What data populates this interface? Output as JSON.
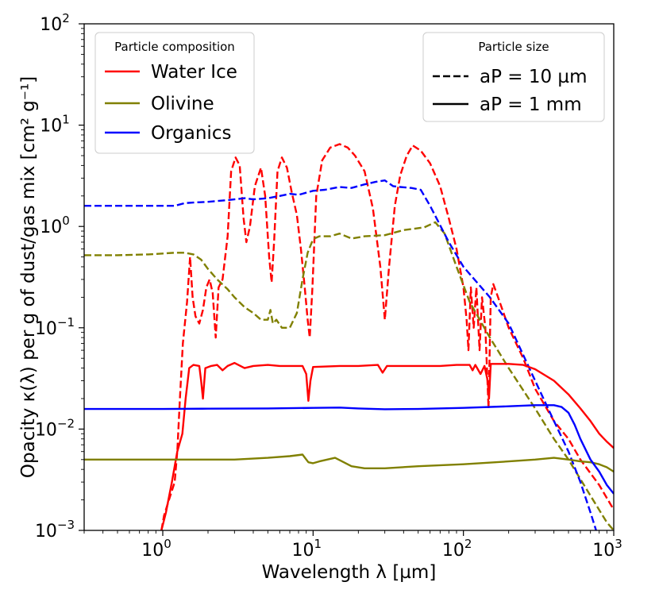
{
  "chart_data": {
    "type": "line",
    "xscale": "log",
    "yscale": "log",
    "xlim": [
      0.3,
      1000
    ],
    "ylim": [
      0.001,
      100
    ],
    "x_ticks": [
      {
        "value": 1,
        "base": "10",
        "exp": "0"
      },
      {
        "value": 10,
        "base": "10",
        "exp": "1"
      },
      {
        "value": 100,
        "base": "10",
        "exp": "2"
      },
      {
        "value": 1000,
        "base": "10",
        "exp": "3"
      }
    ],
    "y_ticks": [
      {
        "value": 0.001,
        "base": "10",
        "exp": "−3"
      },
      {
        "value": 0.01,
        "base": "10",
        "exp": "−2"
      },
      {
        "value": 0.1,
        "base": "10",
        "exp": "−1"
      },
      {
        "value": 1,
        "base": "10",
        "exp": "0"
      },
      {
        "value": 10,
        "base": "10",
        "exp": "1"
      },
      {
        "value": 100,
        "base": "10",
        "exp": "2"
      }
    ],
    "xlabel": "Wavelength λ [µm]",
    "ylabel": "Opacity κ(λ) per g of dust/gas mix [cm² g⁻¹]",
    "legend_composition": {
      "title": "Particle composition",
      "placement": "top-left",
      "entries": [
        {
          "label": "Water Ice",
          "color": "#ff0000"
        },
        {
          "label": "Olivine",
          "color": "#808000"
        },
        {
          "label": "Organics",
          "color": "#0000ff"
        }
      ]
    },
    "legend_size": {
      "title": "Particle size",
      "placement": "top-right",
      "entries": [
        {
          "label": "aP = 10 µm",
          "style": "dashed"
        },
        {
          "label": "aP = 1 mm",
          "style": "solid"
        }
      ]
    },
    "series": [
      {
        "name": "Water Ice, aP = 10 µm",
        "color": "#ff0000",
        "style": "dashed",
        "points": [
          [
            0.98,
            0.001
          ],
          [
            1.02,
            0.0014
          ],
          [
            1.1,
            0.002
          ],
          [
            1.2,
            0.003
          ],
          [
            1.25,
            0.006
          ],
          [
            1.3,
            0.02
          ],
          [
            1.36,
            0.07
          ],
          [
            1.45,
            0.18
          ],
          [
            1.52,
            0.5
          ],
          [
            1.58,
            0.2
          ],
          [
            1.65,
            0.13
          ],
          [
            1.75,
            0.11
          ],
          [
            1.85,
            0.15
          ],
          [
            1.95,
            0.25
          ],
          [
            2.05,
            0.3
          ],
          [
            2.15,
            0.22
          ],
          [
            2.25,
            0.08
          ],
          [
            2.35,
            0.25
          ],
          [
            2.5,
            0.3
          ],
          [
            2.7,
            0.8
          ],
          [
            2.85,
            3.5
          ],
          [
            3.05,
            4.8
          ],
          [
            3.25,
            4.0
          ],
          [
            3.45,
            1.2
          ],
          [
            3.6,
            0.7
          ],
          [
            3.8,
            1.0
          ],
          [
            4.1,
            2.5
          ],
          [
            4.5,
            3.8
          ],
          [
            4.8,
            2.0
          ],
          [
            5.1,
            0.5
          ],
          [
            5.3,
            0.28
          ],
          [
            5.5,
            0.7
          ],
          [
            5.8,
            3.5
          ],
          [
            6.2,
            4.8
          ],
          [
            6.7,
            3.8
          ],
          [
            7.2,
            2.2
          ],
          [
            7.8,
            1.3
          ],
          [
            8.3,
            0.6
          ],
          [
            8.8,
            0.25
          ],
          [
            9.2,
            0.12
          ],
          [
            9.5,
            0.08
          ],
          [
            9.9,
            0.25
          ],
          [
            10.5,
            2.0
          ],
          [
            11.5,
            4.5
          ],
          [
            13,
            6.0
          ],
          [
            15,
            6.5
          ],
          [
            17,
            6.0
          ],
          [
            19,
            5.0
          ],
          [
            22,
            3.5
          ],
          [
            25,
            1.5
          ],
          [
            28,
            0.4
          ],
          [
            30,
            0.12
          ],
          [
            32,
            0.4
          ],
          [
            35,
            1.6
          ],
          [
            38,
            3.2
          ],
          [
            42,
            5.0
          ],
          [
            46,
            6.3
          ],
          [
            52,
            5.6
          ],
          [
            60,
            4.2
          ],
          [
            70,
            2.5
          ],
          [
            80,
            1.2
          ],
          [
            90,
            0.6
          ],
          [
            100,
            0.25
          ],
          [
            105,
            0.12
          ],
          [
            108,
            0.06
          ],
          [
            112,
            0.25
          ],
          [
            117,
            0.1
          ],
          [
            122,
            0.25
          ],
          [
            128,
            0.06
          ],
          [
            133,
            0.2
          ],
          [
            140,
            0.1
          ],
          [
            147,
            0.016
          ],
          [
            152,
            0.2
          ],
          [
            158,
            0.27
          ],
          [
            170,
            0.2
          ],
          [
            200,
            0.1
          ],
          [
            250,
            0.05
          ],
          [
            300,
            0.025
          ],
          [
            400,
            0.012
          ],
          [
            500,
            0.008
          ],
          [
            600,
            0.005
          ],
          [
            800,
            0.0028
          ],
          [
            1000,
            0.0016
          ]
        ]
      },
      {
        "name": "Olivine, aP = 10 µm",
        "color": "#808000",
        "style": "dashed",
        "points": [
          [
            0.3,
            0.52
          ],
          [
            0.5,
            0.52
          ],
          [
            0.8,
            0.53
          ],
          [
            1.0,
            0.54
          ],
          [
            1.2,
            0.55
          ],
          [
            1.4,
            0.55
          ],
          [
            1.6,
            0.53
          ],
          [
            1.8,
            0.47
          ],
          [
            2.0,
            0.38
          ],
          [
            2.3,
            0.3
          ],
          [
            2.7,
            0.24
          ],
          [
            3.0,
            0.2
          ],
          [
            3.5,
            0.16
          ],
          [
            4.0,
            0.14
          ],
          [
            4.5,
            0.12
          ],
          [
            5.0,
            0.12
          ],
          [
            5.2,
            0.15
          ],
          [
            5.4,
            0.11
          ],
          [
            5.7,
            0.12
          ],
          [
            6.2,
            0.1
          ],
          [
            7.0,
            0.1
          ],
          [
            7.8,
            0.14
          ],
          [
            8.5,
            0.3
          ],
          [
            9.2,
            0.55
          ],
          [
            10,
            0.75
          ],
          [
            11,
            0.8
          ],
          [
            13,
            0.8
          ],
          [
            15,
            0.85
          ],
          [
            18,
            0.76
          ],
          [
            22,
            0.8
          ],
          [
            30,
            0.82
          ],
          [
            40,
            0.92
          ],
          [
            55,
            0.98
          ],
          [
            65,
            1.1
          ],
          [
            75,
            0.85
          ],
          [
            90,
            0.4
          ],
          [
            110,
            0.18
          ],
          [
            150,
            0.08
          ],
          [
            200,
            0.04
          ],
          [
            300,
            0.016
          ],
          [
            400,
            0.008
          ],
          [
            500,
            0.005
          ],
          [
            700,
            0.0022
          ],
          [
            900,
            0.0012
          ],
          [
            1000,
            0.001
          ]
        ]
      },
      {
        "name": "Organics, aP = 10 µm",
        "color": "#0000ff",
        "style": "dashed",
        "points": [
          [
            0.3,
            1.6
          ],
          [
            0.6,
            1.6
          ],
          [
            1.0,
            1.6
          ],
          [
            1.2,
            1.6
          ],
          [
            1.4,
            1.7
          ],
          [
            1.6,
            1.72
          ],
          [
            2.0,
            1.75
          ],
          [
            2.5,
            1.8
          ],
          [
            3.0,
            1.85
          ],
          [
            3.5,
            1.9
          ],
          [
            4.0,
            1.85
          ],
          [
            5.0,
            1.9
          ],
          [
            6.0,
            2.0
          ],
          [
            7.0,
            2.1
          ],
          [
            8.0,
            2.05
          ],
          [
            10,
            2.25
          ],
          [
            12,
            2.3
          ],
          [
            15,
            2.45
          ],
          [
            18,
            2.4
          ],
          [
            22,
            2.6
          ],
          [
            26,
            2.75
          ],
          [
            28,
            2.8
          ],
          [
            30,
            2.85
          ],
          [
            34,
            2.5
          ],
          [
            38,
            2.45
          ],
          [
            45,
            2.4
          ],
          [
            52,
            2.3
          ],
          [
            60,
            1.6
          ],
          [
            80,
            0.7
          ],
          [
            100,
            0.4
          ],
          [
            150,
            0.2
          ],
          [
            200,
            0.11
          ],
          [
            300,
            0.03
          ],
          [
            400,
            0.012
          ],
          [
            500,
            0.006
          ],
          [
            600,
            0.003
          ],
          [
            700,
            0.0015
          ],
          [
            800,
            0.0008
          ]
        ]
      },
      {
        "name": "Water Ice, aP = 1 mm",
        "color": "#ff0000",
        "style": "solid",
        "points": [
          [
            0.98,
            0.001
          ],
          [
            1.05,
            0.0015
          ],
          [
            1.15,
            0.003
          ],
          [
            1.25,
            0.006
          ],
          [
            1.35,
            0.009
          ],
          [
            1.42,
            0.02
          ],
          [
            1.5,
            0.04
          ],
          [
            1.6,
            0.043
          ],
          [
            1.75,
            0.042
          ],
          [
            1.8,
            0.03
          ],
          [
            1.85,
            0.02
          ],
          [
            1.92,
            0.04
          ],
          [
            2.1,
            0.042
          ],
          [
            2.3,
            0.043
          ],
          [
            2.5,
            0.038
          ],
          [
            2.7,
            0.042
          ],
          [
            3.0,
            0.045
          ],
          [
            3.5,
            0.04
          ],
          [
            4.0,
            0.042
          ],
          [
            5.0,
            0.043
          ],
          [
            6.0,
            0.042
          ],
          [
            7.0,
            0.042
          ],
          [
            8.5,
            0.042
          ],
          [
            9.0,
            0.035
          ],
          [
            9.3,
            0.019
          ],
          [
            9.6,
            0.03
          ],
          [
            10,
            0.041
          ],
          [
            15,
            0.042
          ],
          [
            20,
            0.042
          ],
          [
            27,
            0.043
          ],
          [
            29,
            0.036
          ],
          [
            31,
            0.042
          ],
          [
            40,
            0.042
          ],
          [
            50,
            0.042
          ],
          [
            60,
            0.042
          ],
          [
            70,
            0.042
          ],
          [
            90,
            0.043
          ],
          [
            110,
            0.043
          ],
          [
            115,
            0.038
          ],
          [
            120,
            0.043
          ],
          [
            130,
            0.035
          ],
          [
            138,
            0.042
          ],
          [
            145,
            0.03
          ],
          [
            148,
            0.02
          ],
          [
            152,
            0.044
          ],
          [
            170,
            0.044
          ],
          [
            200,
            0.044
          ],
          [
            250,
            0.043
          ],
          [
            300,
            0.039
          ],
          [
            400,
            0.03
          ],
          [
            500,
            0.022
          ],
          [
            600,
            0.016
          ],
          [
            700,
            0.012
          ],
          [
            800,
            0.009
          ],
          [
            900,
            0.0075
          ],
          [
            1000,
            0.0065
          ]
        ]
      },
      {
        "name": "Olivine, aP = 1 mm",
        "color": "#808000",
        "style": "solid",
        "points": [
          [
            0.3,
            0.005
          ],
          [
            0.5,
            0.005
          ],
          [
            1.0,
            0.005
          ],
          [
            2.0,
            0.005
          ],
          [
            3.0,
            0.005
          ],
          [
            5.0,
            0.0052
          ],
          [
            7.0,
            0.0054
          ],
          [
            8.5,
            0.0056
          ],
          [
            9.3,
            0.0047
          ],
          [
            10,
            0.0046
          ],
          [
            11,
            0.0048
          ],
          [
            14,
            0.0052
          ],
          [
            16,
            0.0047
          ],
          [
            18,
            0.0043
          ],
          [
            22,
            0.0041
          ],
          [
            30,
            0.0041
          ],
          [
            50,
            0.0043
          ],
          [
            100,
            0.0045
          ],
          [
            200,
            0.0048
          ],
          [
            300,
            0.005
          ],
          [
            400,
            0.0052
          ],
          [
            500,
            0.005
          ],
          [
            600,
            0.0048
          ],
          [
            700,
            0.0047
          ],
          [
            800,
            0.0045
          ],
          [
            900,
            0.0042
          ],
          [
            1000,
            0.0038
          ]
        ]
      },
      {
        "name": "Organics, aP = 1 mm",
        "color": "#0000ff",
        "style": "solid",
        "points": [
          [
            0.3,
            0.0158
          ],
          [
            1.0,
            0.0158
          ],
          [
            2.0,
            0.0159
          ],
          [
            5.0,
            0.016
          ],
          [
            10,
            0.0162
          ],
          [
            15,
            0.0163
          ],
          [
            20,
            0.016
          ],
          [
            30,
            0.0157
          ],
          [
            50,
            0.0158
          ],
          [
            100,
            0.0162
          ],
          [
            200,
            0.0168
          ],
          [
            300,
            0.0172
          ],
          [
            400,
            0.0172
          ],
          [
            450,
            0.0165
          ],
          [
            500,
            0.0145
          ],
          [
            550,
            0.011
          ],
          [
            600,
            0.008
          ],
          [
            700,
            0.005
          ],
          [
            800,
            0.0038
          ],
          [
            900,
            0.0028
          ],
          [
            1000,
            0.0023
          ]
        ]
      }
    ]
  }
}
